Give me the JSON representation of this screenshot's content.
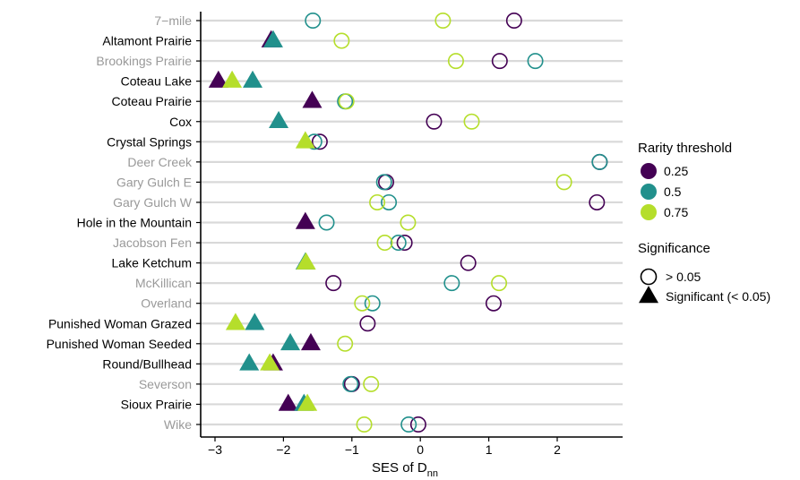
{
  "chart_data": {
    "type": "scatter",
    "xlabel_main": "SES of D",
    "xlabel_sub": "nn",
    "xlim": [
      -3.3,
      2.95
    ],
    "x_ticks": [
      -3,
      -2,
      -1,
      0,
      1,
      2
    ],
    "x_tick_labels": [
      "−3",
      "−2",
      "−1",
      "0",
      "1",
      "2"
    ],
    "grid": "horizontal",
    "legend_position": "right",
    "categories": [
      {
        "label": "7−mile",
        "highlight": false
      },
      {
        "label": "Altamont Prairie",
        "highlight": true
      },
      {
        "label": "Brookings Prairie",
        "highlight": false
      },
      {
        "label": "Coteau Lake",
        "highlight": true
      },
      {
        "label": "Coteau Prairie",
        "highlight": true
      },
      {
        "label": "Cox",
        "highlight": true
      },
      {
        "label": "Crystal Springs",
        "highlight": true
      },
      {
        "label": "Deer Creek",
        "highlight": false
      },
      {
        "label": "Gary Gulch E",
        "highlight": false
      },
      {
        "label": "Gary Gulch W",
        "highlight": false
      },
      {
        "label": "Hole in the Mountain",
        "highlight": true
      },
      {
        "label": "Jacobson Fen",
        "highlight": false
      },
      {
        "label": "Lake Ketchum",
        "highlight": true
      },
      {
        "label": "McKillican",
        "highlight": false
      },
      {
        "label": "Overland",
        "highlight": false
      },
      {
        "label": "Punished Woman Grazed",
        "highlight": true
      },
      {
        "label": "Punished Woman Seeded",
        "highlight": true
      },
      {
        "label": "Round/Bullhead",
        "highlight": true
      },
      {
        "label": "Severson",
        "highlight": false
      },
      {
        "label": "Sioux Prairie",
        "highlight": true
      },
      {
        "label": "Wike",
        "highlight": false
      }
    ],
    "series": [
      {
        "name": "0.25",
        "color": "#440154",
        "points": [
          {
            "site": "7−mile",
            "x": 1.37,
            "sig": false
          },
          {
            "site": "Altamont Prairie",
            "x": -2.18,
            "sig": true
          },
          {
            "site": "Brookings Prairie",
            "x": 1.16,
            "sig": false
          },
          {
            "site": "Coteau Lake",
            "x": -2.95,
            "sig": true
          },
          {
            "site": "Coteau Prairie",
            "x": -1.58,
            "sig": true
          },
          {
            "site": "Cox",
            "x": 0.2,
            "sig": false
          },
          {
            "site": "Crystal Springs",
            "x": -1.47,
            "sig": false
          },
          {
            "site": "Deer Creek",
            "x": 2.62,
            "sig": false
          },
          {
            "site": "Gary Gulch E",
            "x": -0.5,
            "sig": false
          },
          {
            "site": "Gary Gulch W",
            "x": 2.58,
            "sig": false
          },
          {
            "site": "Hole in the Mountain",
            "x": -1.68,
            "sig": true
          },
          {
            "site": "Jacobson Fen",
            "x": -0.23,
            "sig": false
          },
          {
            "site": "Lake Ketchum",
            "x": 0.7,
            "sig": false
          },
          {
            "site": "McKillican",
            "x": -1.27,
            "sig": false
          },
          {
            "site": "Overland",
            "x": 1.07,
            "sig": false
          },
          {
            "site": "Punished Woman Grazed",
            "x": -0.77,
            "sig": false
          },
          {
            "site": "Punished Woman Seeded",
            "x": -1.6,
            "sig": true
          },
          {
            "site": "Round/Bullhead",
            "x": -2.15,
            "sig": true
          },
          {
            "site": "Severson",
            "x": -1.0,
            "sig": false
          },
          {
            "site": "Sioux Prairie",
            "x": -1.93,
            "sig": true
          },
          {
            "site": "Wike",
            "x": -0.03,
            "sig": false
          }
        ]
      },
      {
        "name": "0.5",
        "color": "#21908C",
        "points": [
          {
            "site": "7−mile",
            "x": -1.57,
            "sig": false
          },
          {
            "site": "Altamont Prairie",
            "x": -2.15,
            "sig": true
          },
          {
            "site": "Brookings Prairie",
            "x": 1.68,
            "sig": false
          },
          {
            "site": "Coteau Lake",
            "x": -2.45,
            "sig": true
          },
          {
            "site": "Coteau Prairie",
            "x": -1.1,
            "sig": false
          },
          {
            "site": "Cox",
            "x": -2.07,
            "sig": true
          },
          {
            "site": "Crystal Springs",
            "x": -1.55,
            "sig": false
          },
          {
            "site": "Deer Creek",
            "x": 2.62,
            "sig": false
          },
          {
            "site": "Gary Gulch E",
            "x": -0.53,
            "sig": false
          },
          {
            "site": "Gary Gulch W",
            "x": -0.46,
            "sig": false
          },
          {
            "site": "Hole in the Mountain",
            "x": -1.37,
            "sig": false
          },
          {
            "site": "Jacobson Fen",
            "x": -0.32,
            "sig": false
          },
          {
            "site": "Lake Ketchum",
            "x": -1.68,
            "sig": true
          },
          {
            "site": "McKillican",
            "x": 0.46,
            "sig": false
          },
          {
            "site": "Overland",
            "x": -0.7,
            "sig": false
          },
          {
            "site": "Punished Woman Grazed",
            "x": -2.42,
            "sig": true
          },
          {
            "site": "Punished Woman Seeded",
            "x": -1.9,
            "sig": true
          },
          {
            "site": "Round/Bullhead",
            "x": -2.5,
            "sig": true
          },
          {
            "site": "Severson",
            "x": -1.02,
            "sig": false
          },
          {
            "site": "Sioux Prairie",
            "x": -1.7,
            "sig": true
          },
          {
            "site": "Wike",
            "x": -0.17,
            "sig": false
          }
        ]
      },
      {
        "name": "0.75",
        "color": "#B5DE2B",
        "points": [
          {
            "site": "7−mile",
            "x": 0.33,
            "sig": false
          },
          {
            "site": "Altamont Prairie",
            "x": -1.15,
            "sig": false
          },
          {
            "site": "Brookings Prairie",
            "x": 0.52,
            "sig": false
          },
          {
            "site": "Coteau Lake",
            "x": -2.75,
            "sig": true
          },
          {
            "site": "Coteau Prairie",
            "x": -1.08,
            "sig": false
          },
          {
            "site": "Cox",
            "x": 0.75,
            "sig": false
          },
          {
            "site": "Crystal Springs",
            "x": -1.68,
            "sig": true
          },
          {
            "site": "Deer Creek",
            "x": null,
            "sig": false
          },
          {
            "site": "Gary Gulch E",
            "x": 2.1,
            "sig": false
          },
          {
            "site": "Gary Gulch W",
            "x": -0.63,
            "sig": false
          },
          {
            "site": "Hole in the Mountain",
            "x": -0.18,
            "sig": false
          },
          {
            "site": "Jacobson Fen",
            "x": -0.52,
            "sig": false
          },
          {
            "site": "Lake Ketchum",
            "x": -1.67,
            "sig": true
          },
          {
            "site": "McKillican",
            "x": 1.15,
            "sig": false
          },
          {
            "site": "Overland",
            "x": -0.85,
            "sig": false
          },
          {
            "site": "Punished Woman Grazed",
            "x": -2.7,
            "sig": true
          },
          {
            "site": "Punished Woman Seeded",
            "x": -1.1,
            "sig": false
          },
          {
            "site": "Round/Bullhead",
            "x": -2.2,
            "sig": true
          },
          {
            "site": "Severson",
            "x": -0.72,
            "sig": false
          },
          {
            "site": "Sioux Prairie",
            "x": -1.65,
            "sig": true
          },
          {
            "site": "Wike",
            "x": -0.82,
            "sig": false
          }
        ]
      }
    ],
    "legend": {
      "color_title": "Rarity threshold",
      "shape_title": "Significance",
      "shape_items": [
        {
          "label": "> 0.05",
          "shape": "circle"
        },
        {
          "label": "Significant (< 0.05)",
          "shape": "triangle"
        }
      ]
    },
    "colors": {
      "label_highlight": "#000000",
      "label_muted": "#999999",
      "gridline": "#d9d9d9",
      "legend_shape": "#000000"
    }
  }
}
